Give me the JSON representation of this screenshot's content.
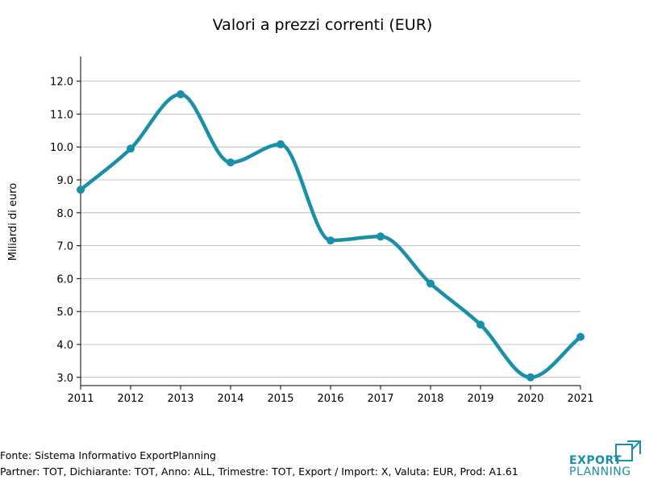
{
  "chart_data": {
    "type": "line",
    "title": "Valori a prezzi correnti (EUR)",
    "xlabel": "",
    "ylabel": "Miliardi di euro",
    "x": [
      "2011",
      "2012",
      "2013",
      "2014",
      "2015",
      "2016",
      "2017",
      "2018",
      "2019",
      "2020",
      "2021"
    ],
    "series": [
      {
        "values": [
          8.7,
          9.95,
          11.6,
          9.53,
          10.08,
          7.16,
          7.28,
          5.85,
          4.6,
          3.0,
          4.23
        ]
      }
    ],
    "y_ticks": [
      "3.0",
      "4.0",
      "5.0",
      "6.0",
      "7.0",
      "8.0",
      "9.0",
      "10.0",
      "11.0",
      "12.0"
    ],
    "ylim": [
      2.75,
      12.75
    ],
    "grid": "horizontal",
    "line_color": "#1a8fa8"
  },
  "footer": {
    "source": "Fonte: Sistema Informativo ExportPlanning",
    "filters": "Partner: TOT, Dichiarante: TOT, Anno: ALL, Trimestre: TOT, Export / Import: X, Valuta: EUR, Prod: A1.61"
  },
  "logo": {
    "word1": "EXPORT",
    "word2": "PLANNING",
    "color": "#1a8fa8"
  }
}
